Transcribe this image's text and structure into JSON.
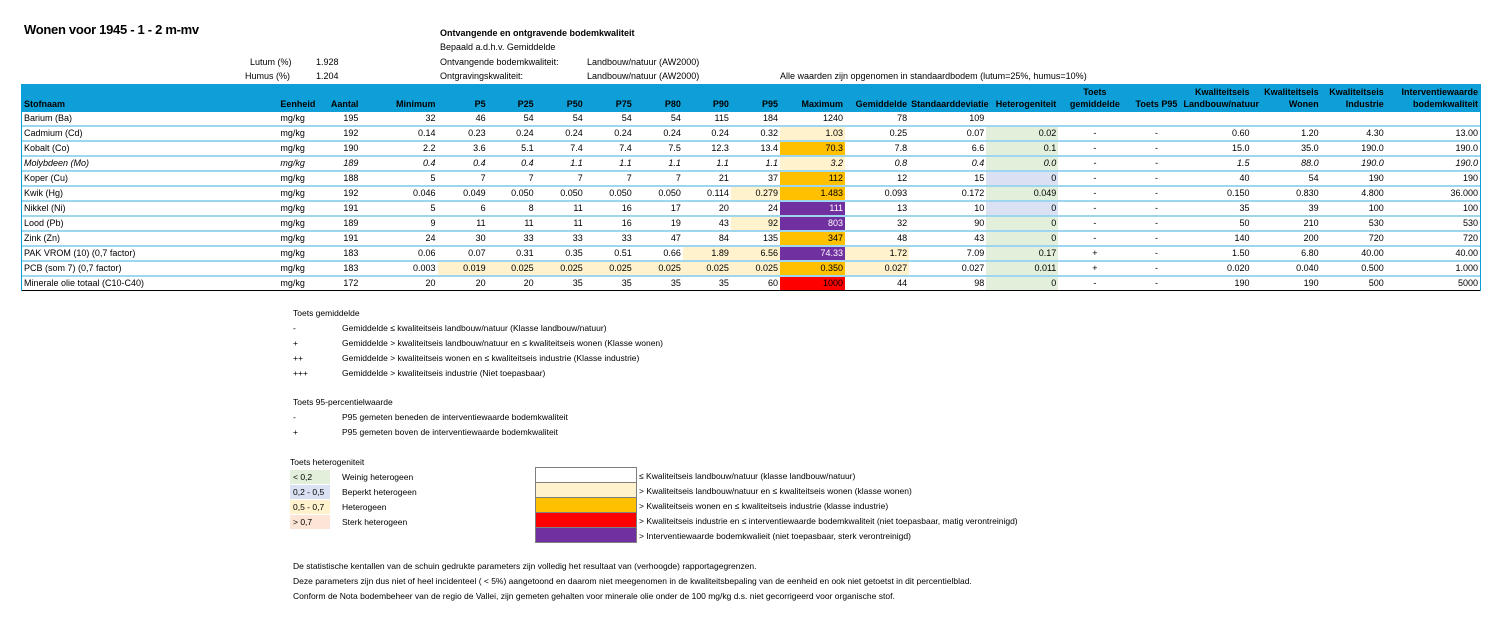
{
  "title": "Wonen voor 1945 - 1 - 2 m-mv",
  "params": {
    "lutum_label": "Lutum (%)",
    "lutum_value": "1.928",
    "humus_label": "Humus (%)",
    "humus_value": "1.204"
  },
  "info": {
    "heading": "Ontvangende en ontgravende bodemkwaliteit",
    "basis": "Bepaald a.d.h.v. Gemiddelde",
    "ontvangend_label": "Ontvangende bodemkwaliteit:",
    "ontvangend_value": "Landbouw/natuur (AW2000)",
    "ontgraving_label": "Ontgravingskwaliteit:",
    "ontgraving_value": "Landbouw/natuur (AW2000)",
    "standaard_note": "Alle waarden zijn opgenomen in standaardbodem (lutum=25%, humus=10%)"
  },
  "colors": {
    "header": "#0e9fd8",
    "wonen": "#fff2cc",
    "industrie": "#ffc000",
    "matig": "#ff0000",
    "sterk": "#7030a0",
    "weinig_het": "#e2efda",
    "beperkt_het": "#d9e1f2",
    "sterk_het": "#fce4d6"
  },
  "table": {
    "columns": [
      [
        "",
        "Stofnaam"
      ],
      [
        "",
        "Eenheid"
      ],
      [
        "",
        "Aantal"
      ],
      [
        "",
        "Minimum"
      ],
      [
        "",
        "P5"
      ],
      [
        "",
        "P25"
      ],
      [
        "",
        "P50"
      ],
      [
        "",
        "P75"
      ],
      [
        "",
        "P80"
      ],
      [
        "",
        "P90"
      ],
      [
        "",
        "P95"
      ],
      [
        "",
        "Maximum"
      ],
      [
        "",
        "Gemiddelde"
      ],
      [
        "",
        "Standaarddeviatie"
      ],
      [
        "",
        "Heterogeniteit"
      ],
      [
        "Toets",
        "gemiddelde"
      ],
      [
        "",
        "Toets P95"
      ],
      [
        "Kwaliteitseis",
        "Landbouw/natuur"
      ],
      [
        "Kwaliteitseis",
        "Wonen"
      ],
      [
        "Kwaliteitseis",
        "Industrie"
      ],
      [
        "Interventiewaarde",
        "bodemkwaliteit"
      ]
    ],
    "rows": [
      {
        "cells": [
          "Barium (Ba)",
          "mg/kg",
          "195",
          "32",
          "46",
          "54",
          "54",
          "54",
          "54",
          "115",
          "184",
          "1240",
          "78",
          "109",
          "",
          "",
          "",
          "",
          "",
          "",
          ""
        ],
        "fills": {}
      },
      {
        "cells": [
          "Cadmium (Cd)",
          "mg/kg",
          "192",
          "0.14",
          "0.23",
          "0.24",
          "0.24",
          "0.24",
          "0.24",
          "0.24",
          "0.32",
          "1.03",
          "0.25",
          "0.07",
          "0.02",
          "-",
          "-",
          "0.60",
          "1.20",
          "4.30",
          "13.00"
        ],
        "fills": {
          "11": "y",
          "14": "g"
        }
      },
      {
        "cells": [
          "Kobalt (Co)",
          "mg/kg",
          "190",
          "2.2",
          "3.6",
          "5.1",
          "7.4",
          "7.4",
          "7.5",
          "12.3",
          "13.4",
          "70.3",
          "7.8",
          "6.6",
          "0.1",
          "-",
          "-",
          "15.0",
          "35.0",
          "190.0",
          "190.0"
        ],
        "fills": {
          "11": "o",
          "14": "g"
        }
      },
      {
        "italic": true,
        "cells": [
          "Molybdeen (Mo)",
          "mg/kg",
          "189",
          "0.4",
          "0.4",
          "0.4",
          "1.1",
          "1.1",
          "1.1",
          "1.1",
          "1.1",
          "3.2",
          "0.8",
          "0.4",
          "0.0",
          "-",
          "-",
          "1.5",
          "88.0",
          "190.0",
          "190.0"
        ],
        "fills": {
          "11": "y",
          "14": "g"
        }
      },
      {
        "cells": [
          "Koper (Cu)",
          "mg/kg",
          "188",
          "5",
          "7",
          "7",
          "7",
          "7",
          "7",
          "21",
          "37",
          "112",
          "12",
          "15",
          "0",
          "-",
          "-",
          "40",
          "54",
          "190",
          "190"
        ],
        "fills": {
          "11": "o",
          "14": "b"
        }
      },
      {
        "cells": [
          "Kwik (Hg)",
          "mg/kg",
          "192",
          "0.046",
          "0.049",
          "0.050",
          "0.050",
          "0.050",
          "0.050",
          "0.114",
          "0.279",
          "1.483",
          "0.093",
          "0.172",
          "0.049",
          "-",
          "-",
          "0.150",
          "0.830",
          "4.800",
          "36.000"
        ],
        "fills": {
          "10": "y",
          "11": "o",
          "14": "g"
        }
      },
      {
        "cells": [
          "Nikkel (Ni)",
          "mg/kg",
          "191",
          "5",
          "6",
          "8",
          "11",
          "16",
          "17",
          "20",
          "24",
          "111",
          "13",
          "10",
          "0",
          "-",
          "-",
          "35",
          "39",
          "100",
          "100"
        ],
        "fills": {
          "11": "p",
          "14": "b"
        }
      },
      {
        "cells": [
          "Lood (Pb)",
          "mg/kg",
          "189",
          "9",
          "11",
          "11",
          "11",
          "16",
          "19",
          "43",
          "92",
          "803",
          "32",
          "90",
          "0",
          "-",
          "-",
          "50",
          "210",
          "530",
          "530"
        ],
        "fills": {
          "10": "y",
          "11": "p",
          "14": "g"
        }
      },
      {
        "cells": [
          "Zink (Zn)",
          "mg/kg",
          "191",
          "24",
          "30",
          "33",
          "33",
          "33",
          "47",
          "84",
          "135",
          "347",
          "48",
          "43",
          "0",
          "-",
          "-",
          "140",
          "200",
          "720",
          "720"
        ],
        "fills": {
          "11": "o",
          "14": "g"
        }
      },
      {
        "cells": [
          "PAK VROM (10) (0,7 factor)",
          "mg/kg",
          "183",
          "0.06",
          "0.07",
          "0.31",
          "0.35",
          "0.51",
          "0.66",
          "1.89",
          "6.56",
          "74.33",
          "1.72",
          "7.09",
          "0.17",
          "+",
          "-",
          "1.50",
          "6.80",
          "40.00",
          "40.00"
        ],
        "fills": {
          "9": "y",
          "10": "y",
          "11": "p",
          "12": "y",
          "14": "g"
        }
      },
      {
        "cells": [
          "PCB (som 7) (0,7 factor)",
          "mg/kg",
          "183",
          "0.003",
          "0.019",
          "0.025",
          "0.025",
          "0.025",
          "0.025",
          "0.025",
          "0.025",
          "0.350",
          "0.027",
          "0.027",
          "0.011",
          "+",
          "-",
          "0.020",
          "0.040",
          "0.500",
          "1.000"
        ],
        "fills": {
          "4": "y",
          "5": "y",
          "6": "y",
          "7": "y",
          "8": "y",
          "9": "y",
          "10": "y",
          "11": "o",
          "12": "y",
          "14": "g"
        }
      },
      {
        "cells": [
          "Minerale olie totaal (C10-C40)",
          "mg/kg",
          "172",
          "20",
          "20",
          "20",
          "35",
          "35",
          "35",
          "35",
          "60",
          "1000",
          "44",
          "98",
          "0",
          "-",
          "-",
          "190",
          "190",
          "500",
          "5000"
        ],
        "fills": {
          "11": "r",
          "14": "g"
        }
      }
    ]
  },
  "legend_gem": {
    "title": "Toets gemiddelde",
    "items": [
      {
        "sym": "-",
        "text": "Gemiddelde ≤ kwaliteitseis landbouw/natuur (Klasse landbouw/natuur)"
      },
      {
        "sym": "+",
        "text": "Gemiddelde > kwaliteitseis landbouw/natuur en ≤ kwaliteitseis wonen (Klasse wonen)"
      },
      {
        "sym": "++",
        "text": "Gemiddelde > kwaliteitseis wonen en ≤ kwaliteitseis industrie (Klasse industrie)"
      },
      {
        "sym": "+++",
        "text": "Gemiddelde > kwaliteitseis industrie (Niet toepasbaar)"
      }
    ]
  },
  "legend_p95": {
    "title": "Toets 95-percentielwaarde",
    "items": [
      {
        "sym": "-",
        "text": "P95 gemeten beneden de interventiewaarde bodemkwaliteit"
      },
      {
        "sym": "+",
        "text": "P95 gemeten boven de interventiewaarde bodemkwaliteit"
      }
    ]
  },
  "legend_het": {
    "title": "Toets heterogeniteit",
    "items": [
      {
        "range": "< 0,2",
        "text": "Weinig heterogeen",
        "fill": "g"
      },
      {
        "range": "0,2 - 0,5",
        "text": "Beperkt heterogeen",
        "fill": "b"
      },
      {
        "range": "0,5 - 0,7",
        "text": "Heterogeen",
        "fill": "y"
      },
      {
        "range": "> 0,7",
        "text": "Sterk heterogeen",
        "fill": "h"
      }
    ]
  },
  "legend_klasse": [
    {
      "text": "≤ Kwaliteitseis landbouw/natuur (klasse landbouw/natuur)",
      "fill": "w"
    },
    {
      "text": "> Kwaliteitseis landbouw/natuur en ≤ kwaliteitseis wonen (klasse wonen)",
      "fill": "y"
    },
    {
      "text": "> Kwaliteitseis wonen en ≤ kwaliteitseis industrie (klasse industrie)",
      "fill": "o"
    },
    {
      "text": "> Kwaliteitseis industrie en ≤ interventiewaarde bodemkwaliteit (niet toepasbaar, matig verontreinigd)",
      "fill": "r"
    },
    {
      "text": "> Interventiewaarde bodemkwalieit (niet toepasbaar, sterk verontreinigd)",
      "fill": "p"
    }
  ],
  "notes": [
    "De statistische kentallen van de schuin gedrukte parameters zijn volledig het resultaat van (verhoogde) rapportagegrenzen.",
    "Deze parameters zijn dus niet of heel incidenteel ( < 5%) aangetoond en daarom niet meegenomen in de kwaliteitsbepaling van de eenheid en ook niet getoetst in dit percentielblad.",
    "Conform de Nota bodembeheer van de regio de Vallei, zijn gemeten gehalten voor minerale olie onder de 100 mg/kg d.s. niet gecorrigeerd voor organische stof."
  ]
}
